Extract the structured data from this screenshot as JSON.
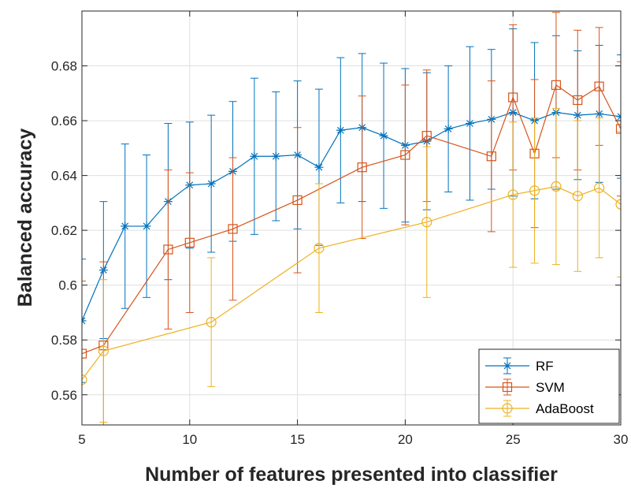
{
  "chart_data": {
    "type": "line",
    "xlabel": "Number of features presented into classifier",
    "ylabel": "Balanced accuracy",
    "xlim": [
      5,
      30
    ],
    "ylim": [
      0.549,
      0.7
    ],
    "xticks": [
      "5",
      "10",
      "15",
      "20",
      "25",
      "30"
    ],
    "yticks": [
      "0.56",
      "0.58",
      "0.6",
      "0.62",
      "0.64",
      "0.66",
      "0.68"
    ],
    "grid": true,
    "legend_position": "bottom-right",
    "series": [
      {
        "name": "RF",
        "color": "#0072BD",
        "marker": "asterisk",
        "x": [
          5,
          6,
          7,
          8,
          9,
          10,
          11,
          12,
          13,
          14,
          15,
          16,
          17,
          18,
          19,
          20,
          21,
          22,
          23,
          24,
          25,
          26,
          27,
          28,
          29,
          30
        ],
        "y": [
          0.587,
          0.6055,
          0.6215,
          0.6215,
          0.6305,
          0.6365,
          0.637,
          0.6415,
          0.647,
          0.647,
          0.6475,
          0.643,
          0.6565,
          0.6575,
          0.6545,
          0.651,
          0.6525,
          0.657,
          0.659,
          0.6605,
          0.663,
          0.66,
          0.663,
          0.662,
          0.6625,
          0.6615
        ],
        "err": [
          0.0225,
          0.025,
          0.03,
          0.026,
          0.0285,
          0.023,
          0.025,
          0.0255,
          0.0285,
          0.0235,
          0.027,
          0.0285,
          0.0265,
          0.027,
          0.0265,
          0.028,
          0.025,
          0.023,
          0.028,
          0.0255,
          0.0305,
          0.0285,
          0.028,
          0.0235,
          0.025,
          0.0225
        ]
      },
      {
        "name": "SVM",
        "color": "#D95319",
        "marker": "square",
        "x": [
          5,
          6,
          9,
          10,
          12,
          15,
          18,
          20,
          21,
          24,
          25,
          26,
          27,
          28,
          29,
          30
        ],
        "y": [
          0.575,
          0.578,
          0.613,
          0.6155,
          0.6205,
          0.631,
          0.643,
          0.6475,
          0.6545,
          0.647,
          0.6685,
          0.648,
          0.673,
          0.6675,
          0.6725,
          0.657
        ],
        "err": [
          0.0265,
          0.0305,
          0.029,
          0.0255,
          0.026,
          0.0265,
          0.026,
          0.0255,
          0.024,
          0.0275,
          0.0265,
          0.027,
          0.0265,
          0.0255,
          0.0215,
          0.0245
        ]
      },
      {
        "name": "AdaBoost",
        "color": "#EDB120",
        "marker": "circle",
        "x": [
          5,
          6,
          11,
          16,
          21,
          25,
          26,
          27,
          28,
          29,
          30
        ],
        "y": [
          0.5655,
          0.576,
          0.5865,
          0.6135,
          0.623,
          0.633,
          0.6345,
          0.636,
          0.6325,
          0.6355,
          0.6295
        ],
        "err": [
          0.0,
          0.026,
          0.0235,
          0.0235,
          0.0275,
          0.0265,
          0.0265,
          0.0285,
          0.0275,
          0.0255,
          0.0265
        ]
      }
    ]
  }
}
